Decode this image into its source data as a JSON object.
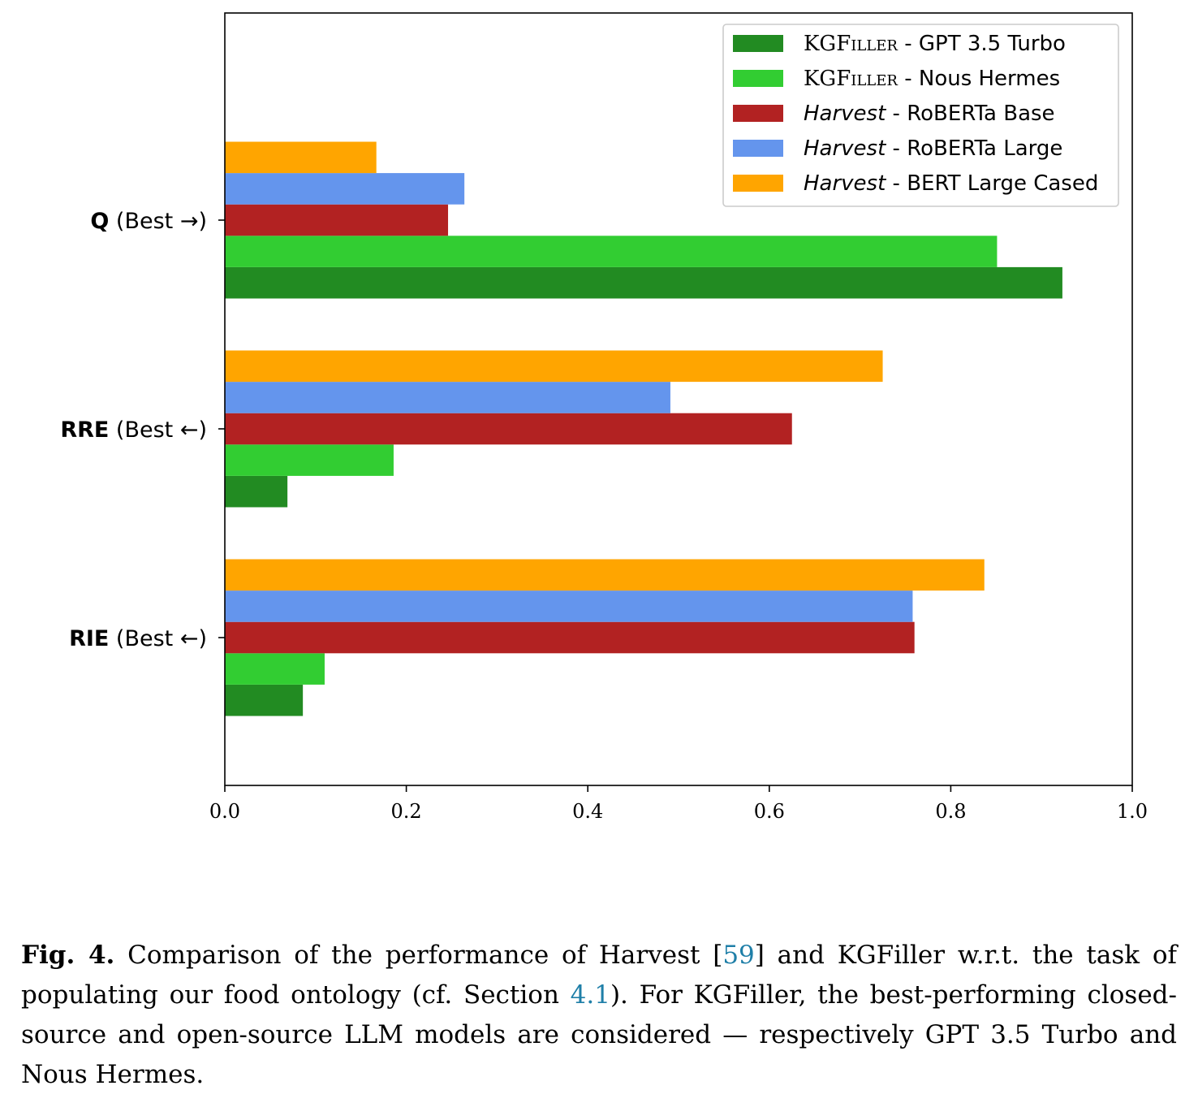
{
  "chart_data": {
    "type": "bar",
    "orientation": "horizontal",
    "categories": [
      {
        "metric": "Q",
        "note": "(Best →)"
      },
      {
        "metric": "RRE",
        "note": "(Best ←)"
      },
      {
        "metric": "RIE",
        "note": "(Best ←)"
      }
    ],
    "series": [
      {
        "name": {
          "sc": "KGFiller",
          "rest": " - GPT 3.5 Turbo"
        },
        "color": "#228b22",
        "values": [
          0.923,
          0.069,
          0.086
        ]
      },
      {
        "name": {
          "sc": "KGFiller",
          "rest": " - Nous Hermes"
        },
        "color": "#32cd32",
        "values": [
          0.851,
          0.186,
          0.11
        ]
      },
      {
        "name": {
          "it": "Harvest",
          "rest": " - RoBERTa Base"
        },
        "color": "#b22222",
        "values": [
          0.246,
          0.625,
          0.76
        ]
      },
      {
        "name": {
          "it": "Harvest",
          "rest": " - RoBERTa Large"
        },
        "color": "#6495ed",
        "values": [
          0.264,
          0.491,
          0.758
        ]
      },
      {
        "name": {
          "it": "Harvest",
          "rest": " - BERT Large Cased"
        },
        "color": "#ffa500",
        "values": [
          0.167,
          0.725,
          0.837
        ]
      }
    ],
    "xlim": [
      0,
      1.0
    ],
    "xticks": [
      "0.0",
      "0.2",
      "0.4",
      "0.6",
      "0.8",
      "1.0"
    ],
    "legend_position": "top-right",
    "grid": false
  },
  "caption": {
    "fig_label": "Fig. 4.",
    "text1": " Comparison of the performance of Harvest [",
    "ref1": "59",
    "text2": "] and KGFiller w.r.t. the task of populating our food ontology (cf. Section ",
    "ref2": "4.1",
    "text3": "). For KGFiller, the best-performing closed-source and open-source LLM models are considered — respectively GPT 3.5 Turbo and Nous Hermes."
  }
}
